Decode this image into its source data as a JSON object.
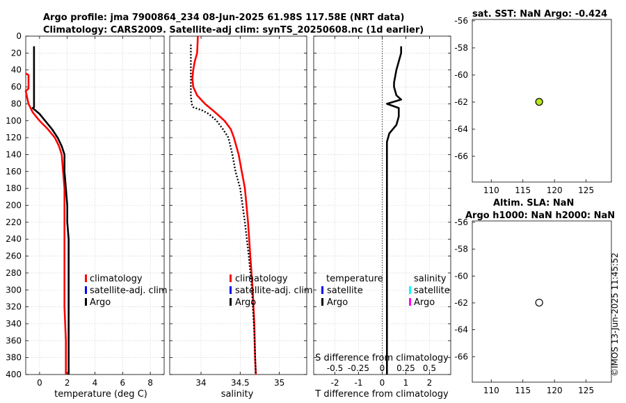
{
  "header": {
    "line1": "Argo profile: jma 7900864_234 08-Jun-2025 61.98S 117.58E (NRT data)",
    "line2": "Climatology: CARS2009. Satellite-adj clim: synTS_20250608.nc (1d earlier)"
  },
  "credit": "©IMOS 13-Jun-2025 11:45:52",
  "colors": {
    "climatology": "#ff0000",
    "satellite": "#0000ff",
    "argo": "#000000",
    "sat_salinity": "#00ffff",
    "argo_salinity": "#ff00ff",
    "marker_sst": "#b5e61d"
  },
  "chart_data": [
    {
      "type": "line",
      "id": "temperature",
      "xlabel": "temperature (deg C)",
      "ylim": [
        0,
        400
      ],
      "xlim": [
        -1,
        9
      ],
      "xticks": [
        0,
        2,
        4,
        6,
        8
      ],
      "yticks": [
        0,
        20,
        40,
        60,
        80,
        100,
        120,
        140,
        160,
        180,
        200,
        220,
        240,
        260,
        280,
        300,
        320,
        340,
        360,
        380,
        400
      ],
      "legend": [
        "climatology",
        "satellite-adj. clim",
        "Argo"
      ],
      "series": [
        {
          "name": "climatology",
          "x": [
            -1.0,
            -0.8,
            -0.8,
            -0.8,
            -1.0,
            -0.8,
            -0.5,
            0.0,
            0.6,
            1.1,
            1.4,
            1.6,
            1.7,
            1.8,
            1.8,
            1.8,
            1.8,
            1.8,
            1.9,
            1.9,
            1.9
          ],
          "y": [
            44,
            46,
            52,
            62,
            65,
            80,
            90,
            100,
            110,
            120,
            130,
            140,
            160,
            180,
            200,
            240,
            280,
            320,
            360,
            390,
            400
          ]
        },
        {
          "name": "Argo",
          "x": [
            -0.4,
            -0.4,
            -0.4,
            -0.4,
            -0.4,
            -0.5,
            0.0,
            0.4,
            0.9,
            1.3,
            1.6,
            1.8,
            1.8,
            1.9,
            2.0,
            2.0,
            2.1,
            2.1,
            2.1,
            2.1,
            2.1
          ],
          "y": [
            12,
            40,
            60,
            82,
            84,
            85,
            92,
            100,
            110,
            120,
            130,
            140,
            160,
            180,
            200,
            220,
            240,
            280,
            320,
            360,
            400
          ]
        }
      ]
    },
    {
      "type": "line",
      "id": "salinity",
      "xlabel": "salinity",
      "ylim": [
        0,
        400
      ],
      "xlim": [
        33.6,
        35.35
      ],
      "xticks": [
        34,
        34.5,
        35
      ],
      "legend": [
        "climatology",
        "satellite-adj. clim",
        "Argo"
      ],
      "series": [
        {
          "name": "climatology",
          "x": [
            33.96,
            33.95,
            33.92,
            33.9,
            33.89,
            33.9,
            33.95,
            34.05,
            34.18,
            34.3,
            34.38,
            34.42,
            34.48,
            34.52,
            34.56,
            34.6,
            34.63,
            34.66,
            34.68,
            34.69,
            34.7
          ],
          "y": [
            0,
            20,
            30,
            40,
            50,
            60,
            70,
            80,
            90,
            100,
            110,
            120,
            140,
            160,
            180,
            220,
            260,
            300,
            340,
            380,
            400
          ]
        },
        {
          "name": "Argo",
          "x": [
            33.87,
            33.87,
            33.87,
            33.87,
            33.88,
            33.9,
            34.02,
            34.1,
            34.2,
            34.28,
            34.35,
            34.4,
            34.44,
            34.5,
            34.56,
            34.61,
            34.65,
            34.68,
            34.7
          ],
          "y": [
            10,
            30,
            50,
            70,
            80,
            84,
            88,
            92,
            100,
            110,
            120,
            140,
            160,
            180,
            220,
            260,
            300,
            350,
            400
          ]
        }
      ]
    },
    {
      "type": "line",
      "id": "difference",
      "xlabel": "T difference from climatology",
      "xlabel2": "S difference from climatology",
      "ylim": [
        0,
        400
      ],
      "xlim": [
        -2.9,
        2.9
      ],
      "xticks": [
        -2,
        -1,
        0,
        1,
        2
      ],
      "xticks2": [
        "-0.5",
        "-0.25",
        "0",
        "0.25",
        "0.5"
      ],
      "legend_temperature_title": "temperature",
      "legend_salinity_title": "salinity",
      "legend_temperature": [
        "satellite",
        "Argo"
      ],
      "legend_salinity": [
        "satellite",
        "Argo"
      ],
      "series": [
        {
          "name": "Argo T diff",
          "x": [
            0.8,
            0.8,
            0.6,
            0.5,
            0.5,
            0.6,
            0.8,
            0.2,
            0.7,
            0.7,
            0.6,
            0.3,
            0.2,
            0.2,
            0.2,
            0.2,
            0.2,
            0.2,
            0.2,
            0.2,
            0.2
          ],
          "y": [
            12,
            20,
            40,
            55,
            60,
            70,
            75,
            80,
            85,
            95,
            105,
            115,
            125,
            160,
            200,
            240,
            280,
            320,
            360,
            380,
            400
          ]
        }
      ]
    },
    {
      "type": "scatter",
      "id": "sst_map",
      "title": "sat. SST: NaN Argo: -0.424",
      "xlim": [
        107,
        129
      ],
      "ylim": [
        -67.9,
        -55.9
      ],
      "xticks": [
        110,
        115,
        120,
        125
      ],
      "yticks": [
        -56,
        -58,
        -60,
        -62,
        -64,
        -66
      ],
      "points": [
        {
          "x": 117.58,
          "y": -61.98
        }
      ]
    },
    {
      "type": "scatter",
      "id": "sla_map",
      "title": "Altim. SLA: NaN",
      "title2": "Argo h1000: NaN h2000: NaN",
      "xlim": [
        107,
        129
      ],
      "ylim": [
        -67.9,
        -55.9
      ],
      "xticks": [
        110,
        115,
        120,
        125
      ],
      "yticks": [
        -56,
        -58,
        -60,
        -62,
        -64,
        -66
      ],
      "points": [
        {
          "x": 117.58,
          "y": -61.98
        }
      ]
    }
  ]
}
